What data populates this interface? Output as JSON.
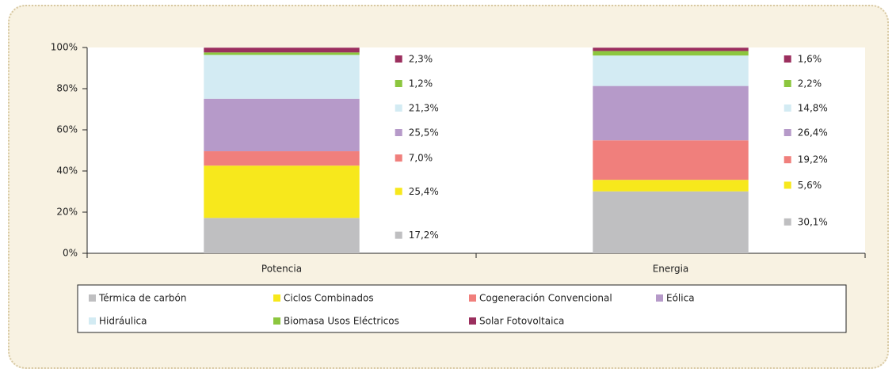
{
  "chart_data": {
    "type": "stacked-bar",
    "categories": [
      "Potencia",
      "Energia"
    ],
    "series": [
      {
        "name": "Térmica de carbón",
        "color": "#bfbfc1",
        "values": [
          17.2,
          30.1
        ],
        "value_labels": [
          "17,2%",
          "30,1%"
        ]
      },
      {
        "name": "Ciclos Combinados",
        "color": "#f7e81c",
        "values": [
          25.4,
          5.6
        ],
        "value_labels": [
          "25,4%",
          "5,6%"
        ]
      },
      {
        "name": "Cogeneración Convencional",
        "color": "#f07f7c",
        "values": [
          7.0,
          19.2
        ],
        "value_labels": [
          "7,0%",
          "19,2%"
        ]
      },
      {
        "name": "Eólica",
        "color": "#b69ac9",
        "values": [
          25.5,
          26.4
        ],
        "value_labels": [
          "25,5%",
          "26,4%"
        ]
      },
      {
        "name": "Hidráulica",
        "color": "#d3ebf3",
        "values": [
          21.3,
          14.8
        ],
        "value_labels": [
          "21,3%",
          "14,8%"
        ]
      },
      {
        "name": "Biomasa Usos Eléctricos",
        "color": "#8cc63e",
        "values": [
          1.2,
          2.2
        ],
        "value_labels": [
          "1,2%",
          "2,2%"
        ]
      },
      {
        "name": "Solar Fotovoltaica",
        "color": "#9b2f5e",
        "values": [
          2.3,
          1.6
        ],
        "value_labels": [
          "2,3%",
          "1,6%"
        ]
      }
    ],
    "ylim": [
      0,
      100
    ],
    "yticks": [
      {
        "value": 0,
        "label": "0%"
      },
      {
        "value": 20,
        "label": "20%"
      },
      {
        "value": 40,
        "label": "40%"
      },
      {
        "value": 60,
        "label": "60%"
      },
      {
        "value": 80,
        "label": "80%"
      },
      {
        "value": 100,
        "label": "100%"
      }
    ],
    "legend": "bottom"
  }
}
